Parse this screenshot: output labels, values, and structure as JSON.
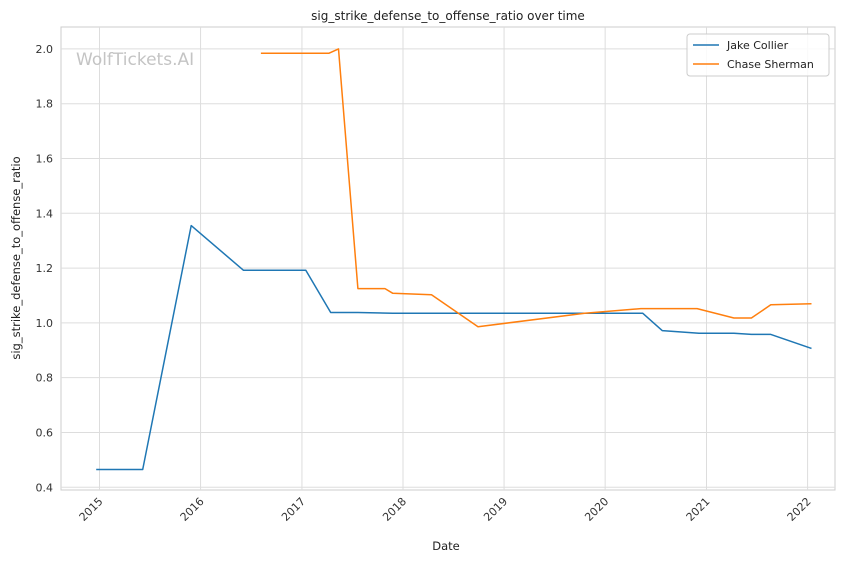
{
  "chart_data": {
    "type": "line",
    "title": "sig_strike_defense_to_offense_ratio over time",
    "xlabel": "Date",
    "ylabel": "sig_strike_defense_to_offense_ratio",
    "watermark": "WolfTickets.AI",
    "x_ticks": [
      "2015",
      "2016",
      "2017",
      "2018",
      "2019",
      "2020",
      "2021",
      "2022"
    ],
    "y_ticks": [
      "0.4",
      "0.6",
      "0.8",
      "1.0",
      "1.2",
      "1.4",
      "1.6",
      "1.8",
      "2.0"
    ],
    "xlim": [
      "2014-08-15",
      "2022-04-10"
    ],
    "ylim": [
      0.39,
      2.08
    ],
    "grid": true,
    "legend_position": "top-right",
    "series": [
      {
        "name": "Jake Collier",
        "color": "#1f77b4",
        "points": [
          [
            "2014-12-20",
            0.465
          ],
          [
            "2015-06-06",
            0.465
          ],
          [
            "2015-11-28",
            1.355
          ],
          [
            "2016-06-04",
            1.192
          ],
          [
            "2017-01-15",
            1.192
          ],
          [
            "2017-04-15",
            1.038
          ],
          [
            "2017-07-22",
            1.038
          ],
          [
            "2017-11-25",
            1.035
          ],
          [
            "2018-04-21",
            1.035
          ],
          [
            "2020-05-16",
            1.035
          ],
          [
            "2020-07-25",
            0.972
          ],
          [
            "2020-12-05",
            0.962
          ],
          [
            "2021-04-10",
            0.962
          ],
          [
            "2021-06-12",
            0.958
          ],
          [
            "2021-08-21",
            0.958
          ],
          [
            "2022-01-15",
            0.907
          ]
        ]
      },
      {
        "name": "Chase Sherman",
        "color": "#ff7f0e",
        "points": [
          [
            "2016-08-06",
            1.984
          ],
          [
            "2017-04-08",
            1.984
          ],
          [
            "2017-05-13",
            2.0
          ],
          [
            "2017-07-22",
            1.125
          ],
          [
            "2017-10-28",
            1.125
          ],
          [
            "2017-11-25",
            1.108
          ],
          [
            "2018-04-14",
            1.103
          ],
          [
            "2018-09-29",
            0.986
          ],
          [
            "2019-10-19",
            1.035
          ],
          [
            "2020-05-09",
            1.052
          ],
          [
            "2020-11-28",
            1.052
          ],
          [
            "2021-04-10",
            1.018
          ],
          [
            "2021-06-12",
            1.018
          ],
          [
            "2021-08-21",
            1.066
          ],
          [
            "2022-01-15",
            1.07
          ]
        ]
      }
    ]
  }
}
